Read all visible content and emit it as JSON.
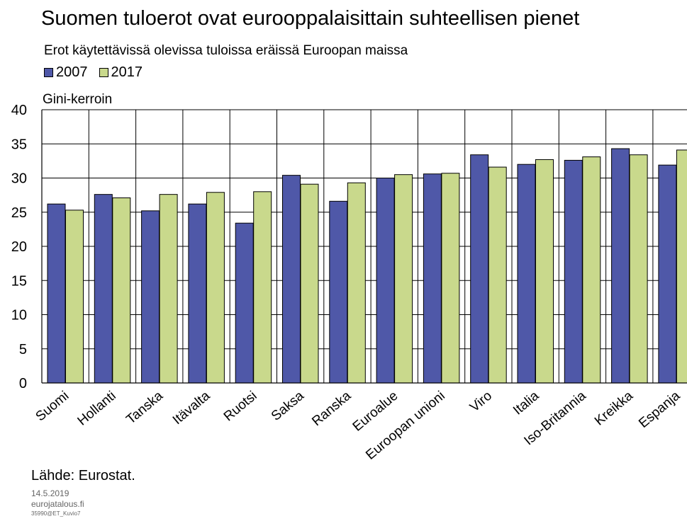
{
  "title": "Suomen tuloerot ovat eurooppalaisittain suhteellisen pienet",
  "subtitle": "Erot käytettävissä olevissa tuloissa eräissä Euroopan maissa",
  "legend": [
    {
      "name": "2007",
      "color": "#4f58a8"
    },
    {
      "name": "2017",
      "color": "#c9d98c"
    }
  ],
  "source": "Lähde: Eurostat.",
  "footer": {
    "date": "14.5.2019",
    "site": "eurojatalous.fi",
    "code": "35990@ET_Kuvio7"
  },
  "chart_data": {
    "type": "bar",
    "ylabel": "Gini-kerroin",
    "ylim": [
      0,
      40
    ],
    "yticks": [
      0,
      5,
      10,
      15,
      20,
      25,
      30,
      35,
      40
    ],
    "grid": true,
    "legend_position": "top-left",
    "categories": [
      "Suomi",
      "Hollanti",
      "Tanska",
      "Itävalta",
      "Ruotsi",
      "Saksa",
      "Ranska",
      "Euroalue",
      "Euroopan unioni",
      "Viro",
      "Italia",
      "Iso-Britannia",
      "Kreikka",
      "Espanja"
    ],
    "series": [
      {
        "name": "2007",
        "color": "#4f58a8",
        "values": [
          26.2,
          27.6,
          25.2,
          26.2,
          23.4,
          30.4,
          26.6,
          30.0,
          30.6,
          33.4,
          32.0,
          32.6,
          34.3,
          31.9
        ]
      },
      {
        "name": "2017",
        "color": "#c9d98c",
        "values": [
          25.3,
          27.1,
          27.6,
          27.9,
          28.0,
          29.1,
          29.3,
          30.5,
          30.7,
          31.6,
          32.7,
          33.1,
          33.4,
          34.1
        ]
      }
    ]
  }
}
